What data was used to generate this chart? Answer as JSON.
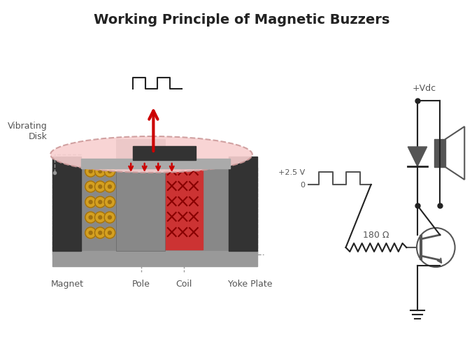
{
  "title": "Working Principle of Magnetic Buzzers",
  "title_fontsize": 14,
  "title_fontweight": "bold",
  "bg_color": "#ffffff",
  "colors": {
    "dark_gray": "#555555",
    "medium_gray": "#888888",
    "light_gray": "#aaaaaa",
    "very_dark": "#333333",
    "coil_red": "#cc3333",
    "coil_bg": "#dd4444",
    "magnet_gold": "#d4a020",
    "magnet_gold_dark": "#a07010",
    "disk_pink": "#f8d0d0",
    "disk_outline": "#cc9999",
    "arrow_red": "#cc0000",
    "dashed_line": "#999999",
    "black": "#222222",
    "white": "#ffffff",
    "signal_line": "#555555",
    "plate_gray": "#999999"
  },
  "labels": {
    "vibrating_disk": "Vibrating\nDisk",
    "magnet": "Magnet",
    "pole": "Pole",
    "coil": "Coil",
    "yoke_plate": "Yoke Plate",
    "vdc_label": "+Vdc",
    "resistor_label": "180 Ω",
    "voltage_high": "+2.5 V",
    "voltage_low": "0"
  }
}
